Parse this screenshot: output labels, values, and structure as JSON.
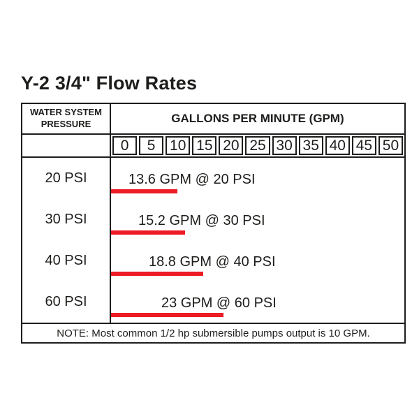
{
  "title": "Y-2 3/4\" Flow Rates",
  "table": {
    "pressure_header_line1": "WATER SYSTEM",
    "pressure_header_line2": "PRESSURE",
    "gpm_header": "GALLONS PER MINUTE (GPM)",
    "gpm_scale": [
      "0",
      "5",
      "10",
      "15",
      "20",
      "25",
      "30",
      "35",
      "40",
      "45",
      "50"
    ],
    "rows": [
      {
        "pressure": "20 PSI",
        "label": "13.6 GPM @ 20 PSI",
        "gpm": 13.6
      },
      {
        "pressure": "30 PSI",
        "label": "15.2 GPM @ 30 PSI",
        "gpm": 15.2
      },
      {
        "pressure": "40 PSI",
        "label": "18.8 GPM @ 40 PSI",
        "gpm": 18.8
      },
      {
        "pressure": "60 PSI",
        "label": "23 GPM @ 60 PSI",
        "gpm": 23
      }
    ],
    "note": "NOTE: Most common 1/2 hp submersible pumps output is 10 GPM."
  },
  "colors": {
    "bar": "#ed1c24",
    "border": "#1d1d1b",
    "text": "#1d1d1b",
    "background": "#ffffff"
  },
  "chart_data": {
    "type": "bar",
    "orientation": "horizontal",
    "title": "Y-2 3/4\" Flow Rates",
    "categories": [
      "20 PSI",
      "30 PSI",
      "40 PSI",
      "60 PSI"
    ],
    "values": [
      13.6,
      15.2,
      18.8,
      23
    ],
    "value_labels": [
      "13.6 GPM @ 20 PSI",
      "15.2 GPM @ 30 PSI",
      "18.8 GPM @ 40 PSI",
      "23 GPM @ 60 PSI"
    ],
    "xlabel": "GALLONS PER MINUTE (GPM)",
    "ylabel": "WATER SYSTEM PRESSURE",
    "xticks": [
      0,
      5,
      10,
      15,
      20,
      25,
      30,
      35,
      40,
      45,
      50
    ],
    "xlim": [
      0,
      50
    ],
    "grid": false,
    "bar_color": "#ed1c24",
    "annotation": "NOTE: Most common 1/2 hp submersible pumps output is 10 GPM."
  }
}
